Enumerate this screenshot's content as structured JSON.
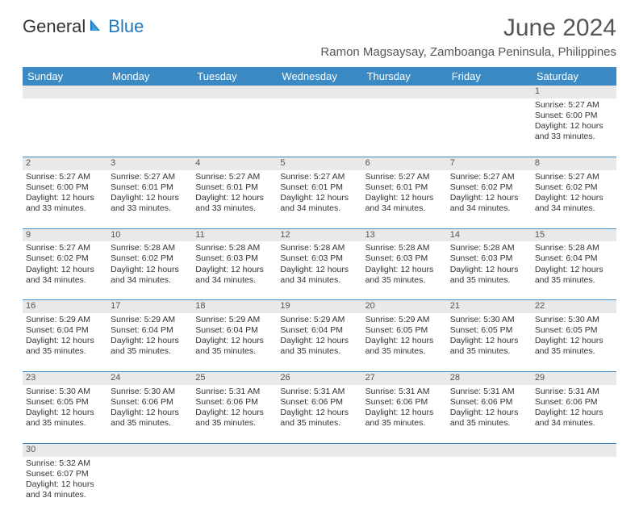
{
  "brand": {
    "part1": "General",
    "part2": "Blue",
    "sailColor": "#1f77c0"
  },
  "title": "June 2024",
  "location": "Ramon Magsaysay, Zamboanga Peninsula, Philippines",
  "headerBg": "#3b8ac4",
  "dayHeaders": [
    "Sunday",
    "Monday",
    "Tuesday",
    "Wednesday",
    "Thursday",
    "Friday",
    "Saturday"
  ],
  "weeks": [
    [
      null,
      null,
      null,
      null,
      null,
      null,
      {
        "n": "1",
        "sr": "5:27 AM",
        "ss": "6:00 PM",
        "dl": "12 hours and 33 minutes."
      }
    ],
    [
      {
        "n": "2",
        "sr": "5:27 AM",
        "ss": "6:00 PM",
        "dl": "12 hours and 33 minutes."
      },
      {
        "n": "3",
        "sr": "5:27 AM",
        "ss": "6:01 PM",
        "dl": "12 hours and 33 minutes."
      },
      {
        "n": "4",
        "sr": "5:27 AM",
        "ss": "6:01 PM",
        "dl": "12 hours and 33 minutes."
      },
      {
        "n": "5",
        "sr": "5:27 AM",
        "ss": "6:01 PM",
        "dl": "12 hours and 34 minutes."
      },
      {
        "n": "6",
        "sr": "5:27 AM",
        "ss": "6:01 PM",
        "dl": "12 hours and 34 minutes."
      },
      {
        "n": "7",
        "sr": "5:27 AM",
        "ss": "6:02 PM",
        "dl": "12 hours and 34 minutes."
      },
      {
        "n": "8",
        "sr": "5:27 AM",
        "ss": "6:02 PM",
        "dl": "12 hours and 34 minutes."
      }
    ],
    [
      {
        "n": "9",
        "sr": "5:27 AM",
        "ss": "6:02 PM",
        "dl": "12 hours and 34 minutes."
      },
      {
        "n": "10",
        "sr": "5:28 AM",
        "ss": "6:02 PM",
        "dl": "12 hours and 34 minutes."
      },
      {
        "n": "11",
        "sr": "5:28 AM",
        "ss": "6:03 PM",
        "dl": "12 hours and 34 minutes."
      },
      {
        "n": "12",
        "sr": "5:28 AM",
        "ss": "6:03 PM",
        "dl": "12 hours and 34 minutes."
      },
      {
        "n": "13",
        "sr": "5:28 AM",
        "ss": "6:03 PM",
        "dl": "12 hours and 35 minutes."
      },
      {
        "n": "14",
        "sr": "5:28 AM",
        "ss": "6:03 PM",
        "dl": "12 hours and 35 minutes."
      },
      {
        "n": "15",
        "sr": "5:28 AM",
        "ss": "6:04 PM",
        "dl": "12 hours and 35 minutes."
      }
    ],
    [
      {
        "n": "16",
        "sr": "5:29 AM",
        "ss": "6:04 PM",
        "dl": "12 hours and 35 minutes."
      },
      {
        "n": "17",
        "sr": "5:29 AM",
        "ss": "6:04 PM",
        "dl": "12 hours and 35 minutes."
      },
      {
        "n": "18",
        "sr": "5:29 AM",
        "ss": "6:04 PM",
        "dl": "12 hours and 35 minutes."
      },
      {
        "n": "19",
        "sr": "5:29 AM",
        "ss": "6:04 PM",
        "dl": "12 hours and 35 minutes."
      },
      {
        "n": "20",
        "sr": "5:29 AM",
        "ss": "6:05 PM",
        "dl": "12 hours and 35 minutes."
      },
      {
        "n": "21",
        "sr": "5:30 AM",
        "ss": "6:05 PM",
        "dl": "12 hours and 35 minutes."
      },
      {
        "n": "22",
        "sr": "5:30 AM",
        "ss": "6:05 PM",
        "dl": "12 hours and 35 minutes."
      }
    ],
    [
      {
        "n": "23",
        "sr": "5:30 AM",
        "ss": "6:05 PM",
        "dl": "12 hours and 35 minutes."
      },
      {
        "n": "24",
        "sr": "5:30 AM",
        "ss": "6:06 PM",
        "dl": "12 hours and 35 minutes."
      },
      {
        "n": "25",
        "sr": "5:31 AM",
        "ss": "6:06 PM",
        "dl": "12 hours and 35 minutes."
      },
      {
        "n": "26",
        "sr": "5:31 AM",
        "ss": "6:06 PM",
        "dl": "12 hours and 35 minutes."
      },
      {
        "n": "27",
        "sr": "5:31 AM",
        "ss": "6:06 PM",
        "dl": "12 hours and 35 minutes."
      },
      {
        "n": "28",
        "sr": "5:31 AM",
        "ss": "6:06 PM",
        "dl": "12 hours and 35 minutes."
      },
      {
        "n": "29",
        "sr": "5:31 AM",
        "ss": "6:06 PM",
        "dl": "12 hours and 34 minutes."
      }
    ],
    [
      {
        "n": "30",
        "sr": "5:32 AM",
        "ss": "6:07 PM",
        "dl": "12 hours and 34 minutes."
      },
      null,
      null,
      null,
      null,
      null,
      null
    ]
  ],
  "labels": {
    "sunrise": "Sunrise:",
    "sunset": "Sunset:",
    "daylight": "Daylight:"
  }
}
